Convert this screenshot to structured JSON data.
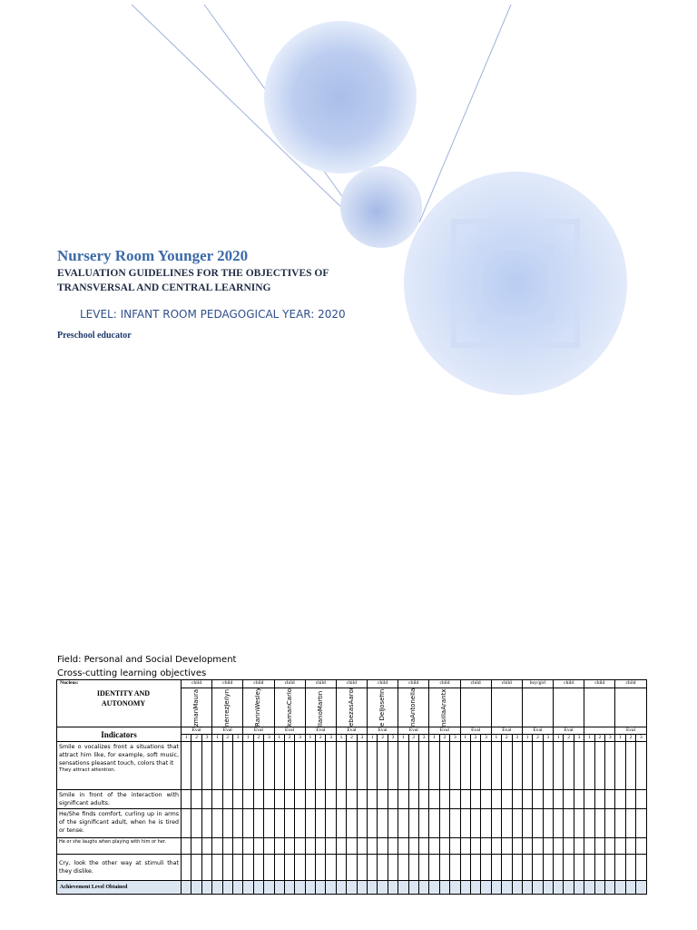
{
  "header": {
    "title": "Nursery Room Younger 2020",
    "subtitle": "EVALUATION GUIDELINES FOR THE OBJECTIVES OF TRANSVERSAL AND CENTRAL LEARNING",
    "level": "LEVEL: INFANT ROOM PEDAGOGICAL YEAR: 2020",
    "author": "Preschool educator"
  },
  "field": "Field: Personal and Social Development",
  "objectives": "Cross-cutting learning objectives",
  "table": {
    "nucleus_label": "Nucleus:",
    "nucleus": "IDENTITY AND AUTONOMY",
    "indicators_label": "Indicators",
    "scale": [
      "1",
      "2",
      "3"
    ],
    "columns": [
      {
        "header": "child",
        "name": "zmanMaura",
        "eval": "Eval"
      },
      {
        "header": "child",
        "name": "nérrezJeilyn",
        "eval": "Eval"
      },
      {
        "header": "child",
        "name": "RarinWesley",
        "eval": "Eval"
      },
      {
        "header": "child",
        "name": "kamanCarlos",
        "eval": "Eval"
      },
      {
        "header": "child",
        "name": "llanoMartin",
        "eval": "Eval"
      },
      {
        "header": "child",
        "name": "ebezasAaron",
        "eval": "Eval"
      },
      {
        "header": "child",
        "name": "e DelJosefina",
        "eval": "Eval"
      },
      {
        "header": "child",
        "name": "riaAntonella",
        "eval": "Eval"
      },
      {
        "header": "child",
        "name": "nsillaArantxa",
        "eval": "Eval"
      },
      {
        "header": "child",
        "eval": "Eval"
      },
      {
        "header": "child",
        "eval": "Eval"
      },
      {
        "header": "boy/girl",
        "eval": "Eval"
      },
      {
        "header": "child",
        "eval": "Eval"
      },
      {
        "header": "child"
      },
      {
        "header": "child",
        "eval": "Eval"
      }
    ],
    "rows": [
      {
        "text": "Smile o vocalizes front a situations that attract him like, for example, soft music, sensations pleasant touch, colors that it",
        "note": "They attract attention."
      },
      {
        "text": "Smile in front of the interaction with significant adults."
      },
      {
        "text": "He/She finds comfort, curling up in arms of the significant adult, when he is tired or tense."
      },
      {
        "text": "He or she laughs when playing with him or her.",
        "small": true
      },
      {
        "text": "Cry, look the other way at stimuli that they dislike."
      }
    ],
    "footer": "Achievement Level Obtained"
  }
}
